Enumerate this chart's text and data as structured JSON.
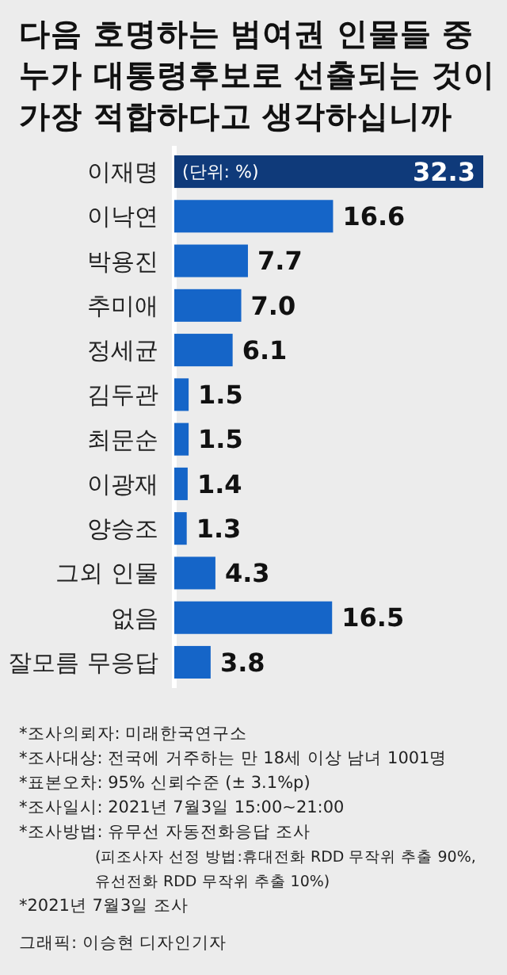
{
  "chart_data": {
    "type": "bar",
    "orientation": "horizontal",
    "value_labels": [
      "32.3",
      "16.6",
      "7.7",
      "7.0",
      "6.1",
      "1.5",
      "1.5",
      "1.4",
      "1.3",
      "4.3",
      "16.5",
      "3.8"
    ],
    "title": "다음 호명하는 범여권 인물들 중\n누가 대통령후보로 선출되는 것이\n가장 적합하다고 생각하십니까",
    "subtitle": "(단위: %)",
    "categories": [
      "이재명",
      "이낙연",
      "박용진",
      "추미애",
      "정세균",
      "김두관",
      "최문순",
      "이광재",
      "양승조",
      "그외 인물",
      "없음",
      "잘모름 무응답"
    ],
    "values": [
      32.3,
      16.6,
      7.7,
      7.0,
      6.1,
      1.5,
      1.5,
      1.4,
      1.3,
      4.3,
      16.5,
      3.8
    ],
    "colors": [
      "#0f3a7a",
      "#1565c8",
      "#1565c8",
      "#1565c8",
      "#1565c8",
      "#1565c8",
      "#1565c8",
      "#1565c8",
      "#1565c8",
      "#1565c8",
      "#1565c8",
      "#1565c8"
    ],
    "annotations": [
      "*조사의뢰자: 미래한국연구소",
      "*조사대상: 전국에 거주하는 만 18세 이상 남녀 1001명",
      "*표본오차: 95% 신뢰수준 (± 3.1%p)",
      "*조사일시: 2021년 7월3일 15:00~21:00",
      "*조사방법: 유무선 자동전화응답 조사\n(피조사자 선정 방법:휴대전화 RDD 무작위 추출 90%,\n유선전화 RDD 무작위 추출 10%)",
      "*2021년 7월3일 조사",
      "그래픽: 이승현 디자인기자"
    ]
  }
}
